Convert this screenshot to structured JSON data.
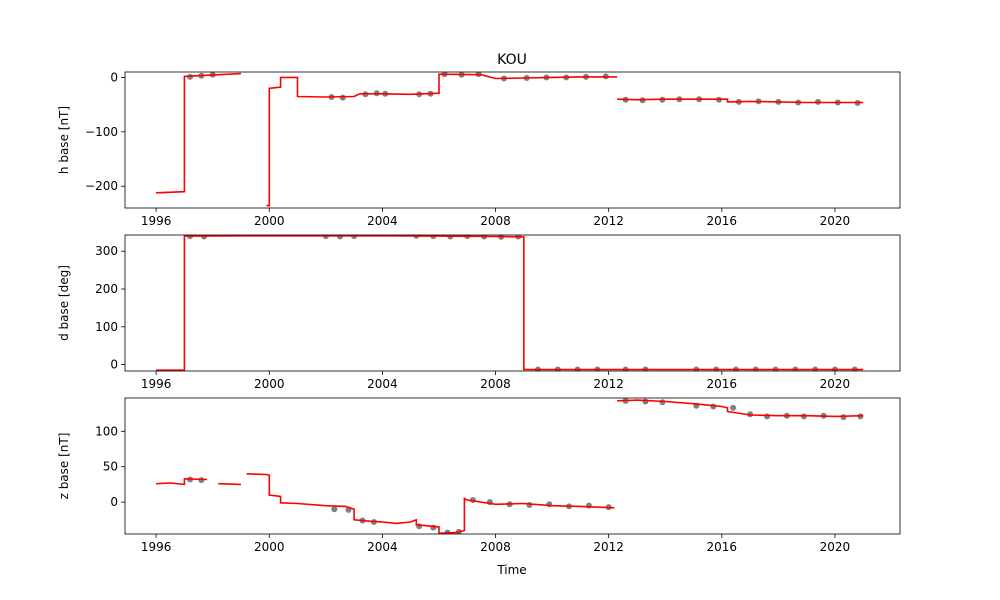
{
  "figure": {
    "title": "KOU",
    "xlabel": "Time"
  },
  "colors": {
    "baseline": "#ff0000",
    "measurement": "#808080",
    "axes": "#000000",
    "background": "#ffffff"
  },
  "chart_data": [
    {
      "type": "line",
      "title": "KOU",
      "xlabel": "",
      "ylabel": "h base [nT]",
      "xlim": [
        1994.9,
        2022.3
      ],
      "ylim": [
        -240,
        10
      ],
      "xticks": [
        1996,
        2000,
        2004,
        2008,
        2012,
        2016,
        2020
      ],
      "xtick_labels": [
        "1996",
        "2000",
        "2004",
        "2008",
        "2012",
        "2016",
        "2020"
      ],
      "yticks": [
        0,
        -100,
        -200
      ],
      "ytick_labels": [
        "0",
        "−100",
        "−200"
      ],
      "grid": false,
      "series": [
        {
          "role": "baseline",
          "x": [
            1996.0,
            1997.0,
            1997.0,
            1999.0,
            null,
            1999.9,
            2000.0,
            2000.0,
            2000.4,
            2000.4,
            2001.0,
            2001.0,
            2002.0,
            2003.0,
            2003.2,
            2004.0,
            2005.0,
            2006.0,
            2006.0,
            2007.5,
            2008.0,
            2009.0,
            2010.0,
            2011.0,
            2012.3,
            null,
            2012.3,
            2013.0,
            2014.0,
            2015.0,
            2016.0,
            2016.2,
            2016.2,
            2017.0,
            2018.0,
            2019.0,
            2020.0,
            2021.0
          ],
          "y": [
            -212,
            -210,
            2,
            7,
            null,
            -235,
            -236,
            -20,
            -18,
            0,
            0,
            -35,
            -36,
            -35,
            -30,
            -30,
            -31,
            -29,
            6,
            5,
            -2,
            -1,
            0,
            1,
            1,
            null,
            -40,
            -41,
            -40,
            -40,
            -40,
            -40,
            -45,
            -44,
            -45,
            -46,
            -46,
            -46
          ]
        },
        {
          "role": "measurements",
          "x": [
            1997.2,
            1997.6,
            1998.0,
            2002.2,
            2002.6,
            2003.4,
            2003.8,
            2004.1,
            2005.3,
            2005.7,
            2006.2,
            2006.8,
            2007.4,
            2008.3,
            2009.1,
            2009.8,
            2010.5,
            2011.2,
            2011.9,
            2012.6,
            2013.2,
            2013.9,
            2014.5,
            2015.2,
            2015.9,
            2016.6,
            2017.3,
            2018.0,
            2018.7,
            2019.4,
            2020.1,
            2020.8
          ],
          "y": [
            1,
            3,
            5,
            -36,
            -37,
            -31,
            -29,
            -30,
            -31,
            -30,
            6,
            5,
            6,
            -2,
            -1,
            0,
            0,
            1,
            2,
            -41,
            -42,
            -41,
            -40,
            -40,
            -41,
            -45,
            -44,
            -45,
            -46,
            -45,
            -46,
            -47
          ]
        }
      ]
    },
    {
      "type": "line",
      "title": "",
      "xlabel": "",
      "ylabel": "d base [deg]",
      "xlim": [
        1994.9,
        2022.3
      ],
      "ylim": [
        -17,
        343
      ],
      "xticks": [
        1996,
        2000,
        2004,
        2008,
        2012,
        2016,
        2020
      ],
      "xtick_labels": [
        "1996",
        "2000",
        "2004",
        "2008",
        "2012",
        "2016",
        "2020"
      ],
      "yticks": [
        0,
        100,
        200,
        300
      ],
      "ytick_labels": [
        "0",
        "100",
        "200",
        "300"
      ],
      "grid": false,
      "series": [
        {
          "role": "baseline",
          "x": [
            1996.0,
            1997.0,
            1997.0,
            2000.0,
            2004.0,
            2006.0,
            2008.0,
            2009.0,
            2009.0,
            2012.0,
            2016.0,
            2020.0,
            2021.0
          ],
          "y": [
            -15,
            -15,
            340,
            341,
            341,
            340,
            339,
            338,
            -13,
            -13,
            -13,
            -13,
            -13
          ]
        },
        {
          "role": "measurements",
          "x": [
            1997.2,
            1997.7,
            2002.0,
            2002.5,
            2003.0,
            2005.2,
            2005.8,
            2006.4,
            2007.0,
            2007.6,
            2008.2,
            2008.8,
            2009.5,
            2010.2,
            2010.9,
            2011.6,
            2012.6,
            2013.3,
            2015.1,
            2015.8,
            2016.5,
            2017.2,
            2017.9,
            2018.6,
            2019.3,
            2020.0,
            2020.7
          ],
          "y": [
            340,
            339,
            340,
            339,
            340,
            341,
            340,
            339,
            340,
            339,
            338,
            339,
            -13,
            -13,
            -13,
            -13,
            -13,
            -13,
            -13,
            -13,
            -13,
            -13,
            -13,
            -13,
            -13,
            -13,
            -13
          ]
        }
      ]
    },
    {
      "type": "line",
      "title": "",
      "xlabel": "Time",
      "ylabel": "z base [nT]",
      "xlim": [
        1994.9,
        2022.3
      ],
      "ylim": [
        -45,
        147
      ],
      "xticks": [
        1996,
        2000,
        2004,
        2008,
        2012,
        2016,
        2020
      ],
      "xtick_labels": [
        "1996",
        "2000",
        "2004",
        "2008",
        "2012",
        "2016",
        "2020"
      ],
      "yticks": [
        100,
        50,
        0
      ],
      "ytick_labels": [
        "100",
        "50",
        "0"
      ],
      "grid": false,
      "series": [
        {
          "role": "baseline",
          "x": [
            1996.0,
            1996.5,
            1997.0,
            1997.0,
            1997.8,
            null,
            1998.2,
            1999.0,
            null,
            1999.2,
            1999.9,
            2000.0,
            2000.0,
            2000.4,
            2000.4,
            2001.0,
            2002.0,
            2002.7,
            2003.0,
            2003.0,
            2003.6,
            2004.0,
            2004.5,
            2005.0,
            2005.2,
            2005.2,
            2006.0,
            2006.0,
            2006.6,
            2006.9,
            2006.9,
            2007.0,
            2008.0,
            2009.0,
            2010.0,
            2011.0,
            2012.2,
            null,
            2012.3,
            2013.0,
            2014.0,
            2015.0,
            2015.5,
            2016.0,
            2016.2,
            2016.2,
            2017.0,
            2018.0,
            2019.0,
            2020.0,
            2021.0
          ],
          "y": [
            26,
            27,
            25,
            33,
            32,
            null,
            26,
            25,
            null,
            40,
            39,
            38,
            10,
            8,
            -1,
            -2,
            -5,
            -6,
            -10,
            -25,
            -27,
            -28,
            -30,
            -28,
            -25,
            -32,
            -35,
            -44,
            -43,
            -40,
            5,
            3,
            -3,
            -2,
            -5,
            -6,
            -8,
            null,
            143,
            144,
            142,
            139,
            137,
            135,
            133,
            128,
            123,
            122,
            122,
            121,
            122
          ]
        },
        {
          "role": "measurements",
          "x": [
            1997.2,
            1997.6,
            2002.3,
            2002.8,
            2003.3,
            2003.7,
            2005.3,
            2005.8,
            2006.3,
            2006.7,
            2007.2,
            2007.8,
            2008.5,
            2009.2,
            2009.9,
            2010.6,
            2011.3,
            2012.0,
            2012.6,
            2013.3,
            2013.9,
            2015.1,
            2015.7,
            2016.4,
            2017.0,
            2017.6,
            2018.3,
            2018.9,
            2019.6,
            2020.3,
            2020.9
          ],
          "y": [
            32,
            31,
            -10,
            -11,
            -26,
            -28,
            -34,
            -36,
            -43,
            -42,
            3,
            0,
            -3,
            -4,
            -3,
            -6,
            -5,
            -7,
            143,
            142,
            141,
            136,
            135,
            133,
            124,
            121,
            122,
            121,
            122,
            120,
            121
          ]
        }
      ]
    }
  ]
}
